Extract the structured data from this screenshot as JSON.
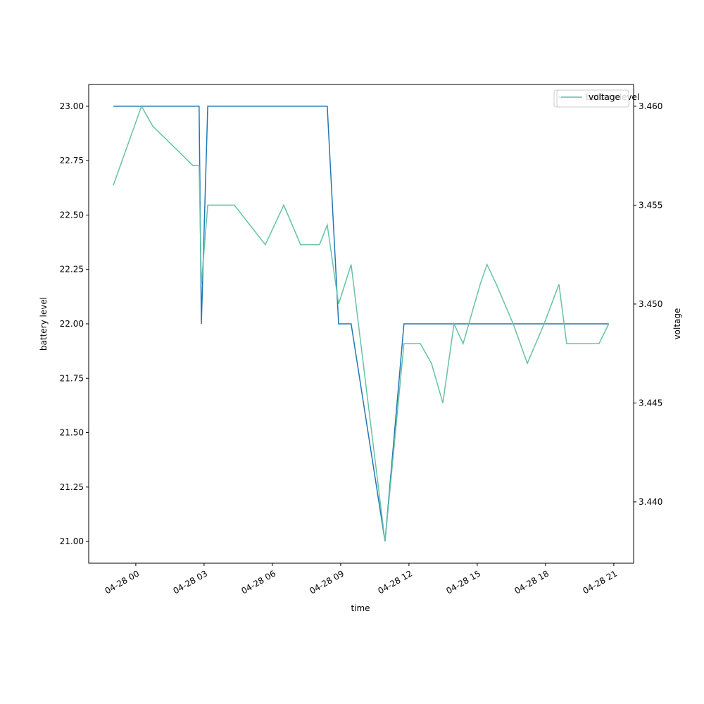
{
  "chart_data": {
    "type": "line",
    "x_label": "time",
    "y_label": "battery level",
    "y2_label": "voltage",
    "x": [
      -0.99,
      0.25,
      0.74,
      2.51,
      2.78,
      2.88,
      3.16,
      4.33,
      5.69,
      6.5,
      7.24,
      8.07,
      8.41,
      8.91,
      9.46,
      10.95,
      11.78,
      12.5,
      12.99,
      13.49,
      13.98,
      14.38,
      15.13,
      15.43,
      15.84,
      16.58,
      17.2,
      17.94,
      18.59,
      18.93,
      20.35,
      20.78
    ],
    "series": [
      {
        "name": "battery level",
        "color": "#1f77b4",
        "axis": "y",
        "values": [
          23,
          23,
          23,
          23,
          23,
          22,
          23,
          23,
          23,
          23,
          23,
          23,
          23,
          22,
          22,
          21,
          22,
          22,
          22,
          22,
          22,
          22,
          22,
          22,
          22,
          22,
          22,
          22,
          22,
          22,
          22,
          22
        ]
      },
      {
        "name": "voltage",
        "color": "#66c2a5",
        "axis": "y2",
        "values": [
          3.456,
          3.46,
          3.459,
          3.457,
          3.457,
          3.451,
          3.455,
          3.455,
          3.453,
          3.455,
          3.453,
          3.453,
          3.454,
          3.45,
          3.452,
          3.438,
          3.448,
          3.448,
          3.447,
          3.445,
          3.449,
          3.448,
          3.451,
          3.452,
          3.451,
          3.449,
          3.447,
          3.449,
          3.451,
          3.448,
          3.448,
          3.449
        ]
      }
    ],
    "xlim": [
      -2.07,
      21.87
    ],
    "xticks": [
      {
        "value": 0,
        "label": "04-28 00"
      },
      {
        "value": 3,
        "label": "04-28 03"
      },
      {
        "value": 6,
        "label": "04-28 06"
      },
      {
        "value": 9,
        "label": "04-28 09"
      },
      {
        "value": 12,
        "label": "04-28 12"
      },
      {
        "value": 15,
        "label": "04-28 15"
      },
      {
        "value": 18,
        "label": "04-28 18"
      },
      {
        "value": 21,
        "label": "04-28 21"
      }
    ],
    "ylim": [
      20.9,
      23.1
    ],
    "yticks": [
      {
        "value": 21,
        "label": "21.00"
      },
      {
        "value": 21.25,
        "label": "21.25"
      },
      {
        "value": 21.5,
        "label": "21.50"
      },
      {
        "value": 21.75,
        "label": "21.75"
      },
      {
        "value": 22,
        "label": "22.00"
      },
      {
        "value": 22.25,
        "label": "22.25"
      },
      {
        "value": 22.5,
        "label": "22.50"
      },
      {
        "value": 22.75,
        "label": "22.75"
      },
      {
        "value": 23,
        "label": "23.00"
      }
    ],
    "y2lim": [
      3.4369,
      3.4611
    ],
    "y2ticks": [
      {
        "value": 3.44,
        "label": "3.440"
      },
      {
        "value": 3.445,
        "label": "3.445"
      },
      {
        "value": 3.45,
        "label": "3.450"
      },
      {
        "value": 3.455,
        "label": "3.455"
      },
      {
        "value": 3.46,
        "label": "3.460"
      }
    ],
    "legend": "upper right"
  }
}
